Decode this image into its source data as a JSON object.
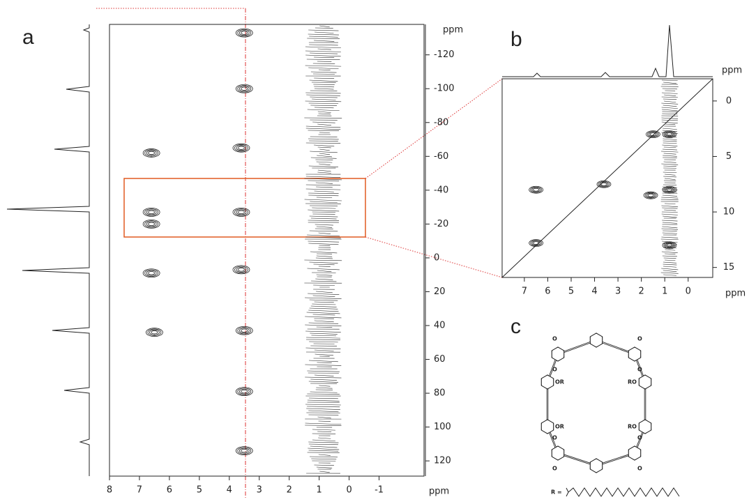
{
  "chart_data": [
    {
      "type": "contour",
      "label": "a",
      "x_label": "ppm",
      "y_label": "ppm",
      "xlim": [
        8,
        -2.5
      ],
      "ylim": [
        -138,
        129
      ],
      "xticks": [
        8,
        7,
        6,
        5,
        4,
        3,
        2,
        1,
        0,
        -1
      ],
      "yticks": [
        -120,
        -100,
        -80,
        -60,
        -40,
        -20,
        0,
        20,
        40,
        60,
        80,
        100,
        120
      ],
      "x": [
        6.6,
        6.6,
        3.6,
        6.6,
        3.6,
        6.5,
        3.5,
        3.5,
        3.5,
        6.6,
        3.6,
        3.5,
        3.5
      ],
      "y": [
        -27,
        -20,
        -27,
        9,
        7,
        44,
        43,
        79,
        -100,
        -62,
        -65,
        -133,
        114
      ]
    },
    {
      "type": "contour",
      "label": "b",
      "x_label": "ppm",
      "y_label": "ppm",
      "xlim": [
        7.95,
        -1.05
      ],
      "ylim": [
        -2,
        15.9
      ],
      "xticks": [
        7,
        6,
        5,
        4,
        3,
        2,
        1,
        0
      ],
      "yticks": [
        0,
        5,
        10,
        15
      ],
      "x": [
        6.5,
        3.6,
        1.5,
        0.8,
        0.8,
        1.6,
        0.8,
        6.5
      ],
      "y": [
        8,
        7.5,
        3,
        3,
        8,
        8.5,
        13,
        12.8
      ]
    }
  ],
  "structure": {
    "label": "c",
    "substituent_label": "R =",
    "atoms": [
      "OR",
      "RO",
      "OR",
      "RO",
      "O",
      "O",
      "O",
      "O",
      "O",
      "O",
      "O",
      "O"
    ]
  }
}
